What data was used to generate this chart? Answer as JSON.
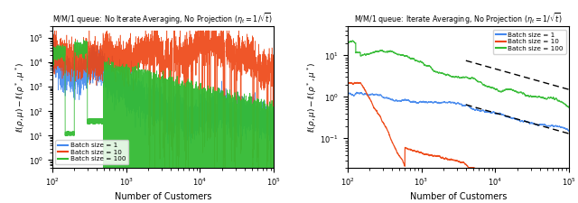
{
  "title_left": "M/M/1 queue: No Iterate Averaging, No Projection ($\\eta_t = 1/\\sqrt{t}$)",
  "title_right": "M/M/1 queue: Iterate Averaging, No Projection ($\\eta_t = 1/\\sqrt{t}$)",
  "xlabel": "Number of Customers",
  "ylabel": "$\\ell(\\rho, \\mu) - \\ell(\\rho^*, \\mu^*)$",
  "xlim": [
    100,
    100000
  ],
  "ylim_left": [
    0.5,
    300000
  ],
  "ylim_right": [
    0.02,
    50
  ],
  "colors": {
    "b1": "#4488ee",
    "b10": "#ee4411",
    "b100": "#33bb33"
  },
  "legend_labels": [
    "Batch size = 1",
    "Batch size = 10",
    "Batch size = 100"
  ],
  "seed": 12
}
